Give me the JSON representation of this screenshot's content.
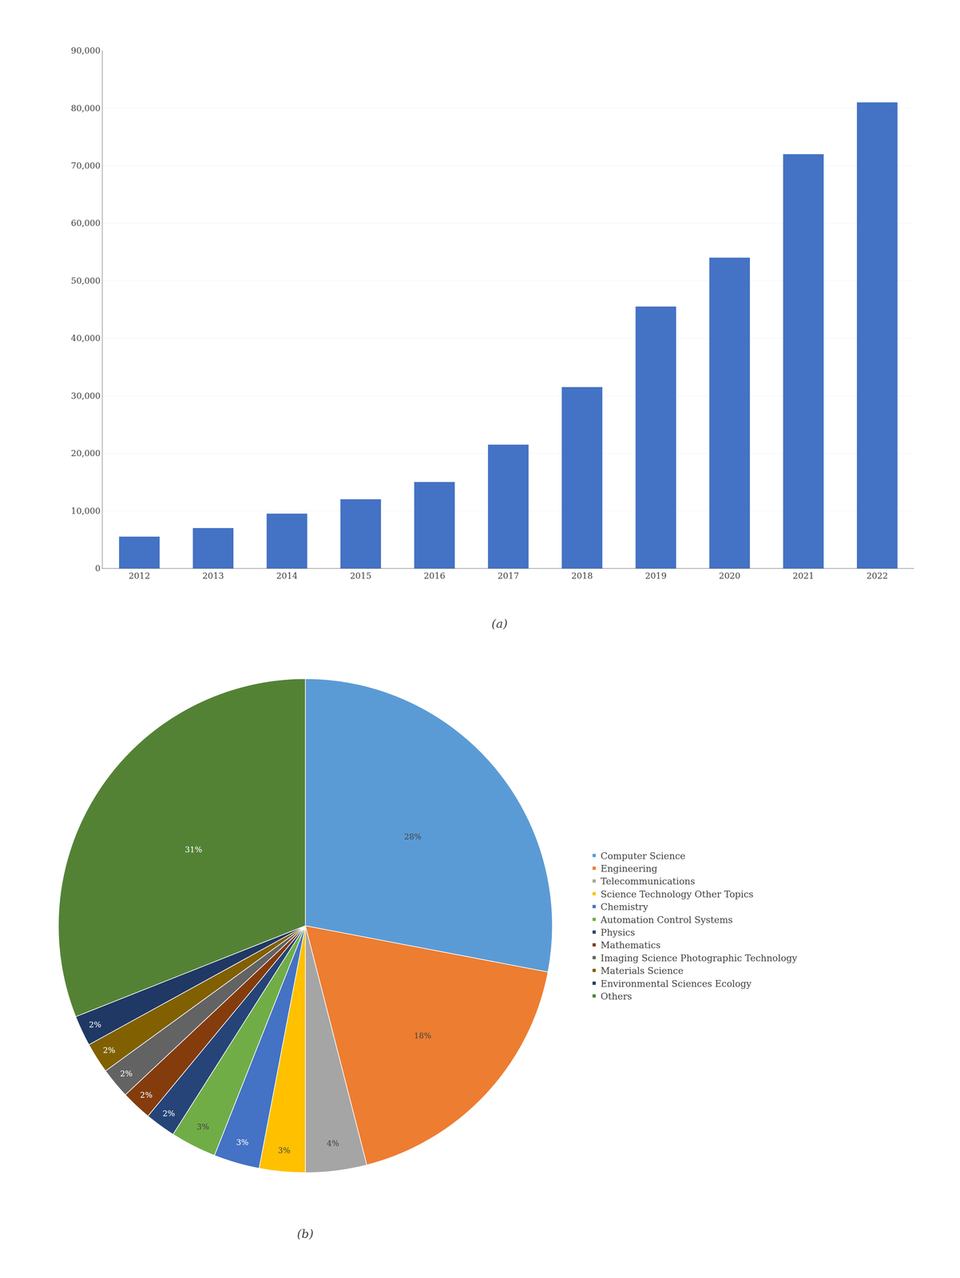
{
  "chart_data": [
    {
      "type": "bar",
      "title": "(a)",
      "categories": [
        "2012",
        "2013",
        "2014",
        "2015",
        "2016",
        "2017",
        "2018",
        "2019",
        "2020",
        "2021",
        "2022"
      ],
      "values": [
        5500,
        7000,
        9500,
        12000,
        15000,
        21500,
        31500,
        45500,
        54000,
        72000,
        81000
      ],
      "color": "#4472C4",
      "ylim": [
        0,
        90000
      ],
      "yticks": [
        0,
        {
          "value": 10000,
          "label": "10,000"
        },
        {
          "value": 20000,
          "label": "20,000"
        },
        {
          "value": 30000,
          "label": "30,000"
        },
        {
          "value": 40000,
          "label": "40,000"
        },
        {
          "value": 50000,
          "label": "50,000"
        },
        {
          "value": 60000,
          "label": "60,000"
        },
        {
          "value": 70000,
          "label": "70,000"
        },
        {
          "value": 80000,
          "label": "80,000"
        },
        {
          "value": 90000,
          "label": "90,000"
        }
      ],
      "grid": true
    },
    {
      "type": "pie",
      "title": "(b)",
      "categories": [
        "Computer Science",
        "Engineering",
        "Telecommunications",
        "Science Technology Other Topics",
        "Chemistry",
        "Automation Control Systems",
        "Physics",
        "Mathematics",
        "Imaging Science Photographic Technology",
        "Materials Science",
        "Environmental Sciences Ecology",
        "Others"
      ],
      "values": [
        28,
        18,
        4,
        3,
        3,
        3,
        2,
        2,
        2,
        2,
        2,
        31
      ],
      "value_labels": [
        "28%",
        "18%",
        "4%",
        "3%",
        "3%",
        "3%",
        "2%",
        "2%",
        "2%",
        "2%",
        "2%",
        "31%"
      ],
      "colors": [
        "#5B9BD5",
        "#ED7D31",
        "#A5A5A5",
        "#FFC000",
        "#4472C4",
        "#70AD47",
        "#264478",
        "#843C0C",
        "#636363",
        "#806000",
        "#203864",
        "#548235"
      ],
      "data_labels": true,
      "legend": "right"
    }
  ]
}
